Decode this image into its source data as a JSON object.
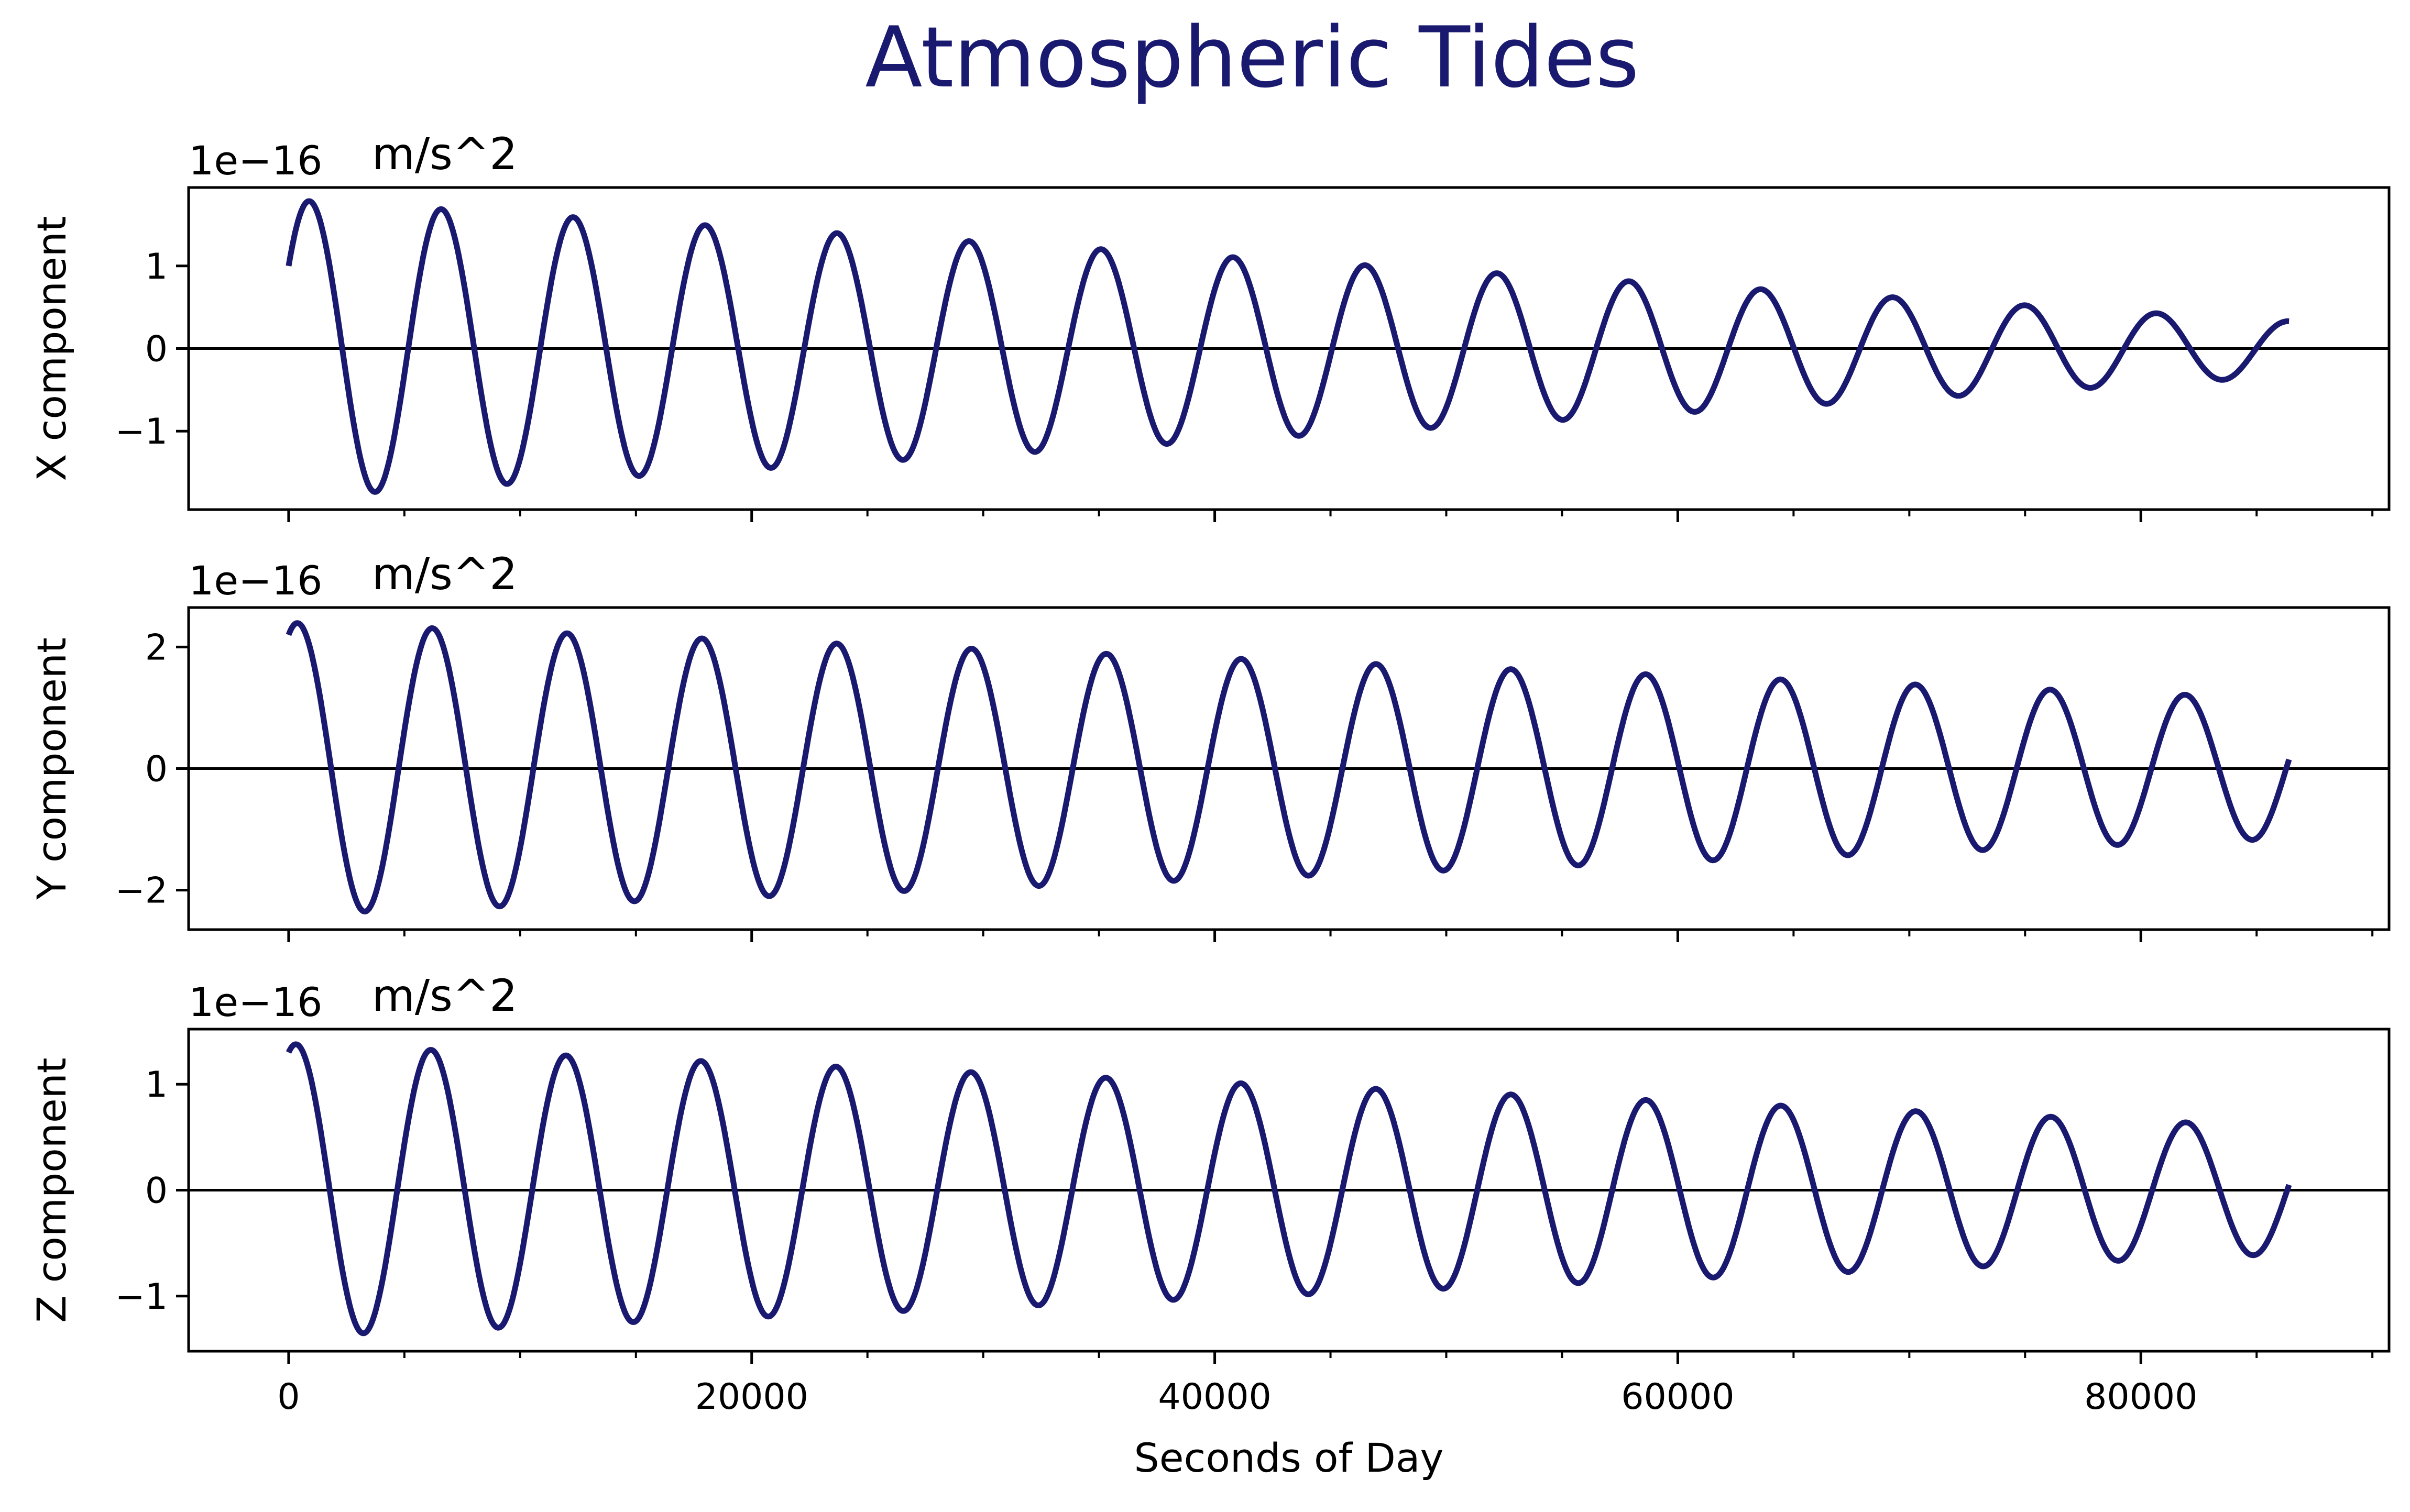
{
  "figure": {
    "title": "Atmospheric Tides",
    "xlabel": "Seconds of Day",
    "colors": {
      "line": "#191970",
      "title": "#191970",
      "axis": "#000000",
      "zero_line": "#000000"
    }
  },
  "chart_data": [
    {
      "type": "line",
      "ylabel": "X component",
      "offset_text": "1e−16",
      "units": "m/s^2",
      "xlim": [
        -4320,
        90720
      ],
      "ylim": [
        -1.95,
        1.95
      ],
      "xticks": [
        0,
        20000,
        40000,
        60000,
        80000
      ],
      "xtick_labels": [
        "",
        "",
        "",
        "",
        ""
      ],
      "yticks": [
        -1,
        0,
        1
      ],
      "ytick_labels": [
        "−1",
        "0",
        "1"
      ],
      "zero_line": true,
      "wave": {
        "x_start": 0,
        "x_end": 86400,
        "amp_start": 1.8,
        "amp_end": 0.33,
        "start_phase_value": 1.0,
        "end_value": 0.33,
        "cycles": 15
      },
      "series": [
        {
          "name": ""
        }
      ]
    },
    {
      "type": "line",
      "ylabel": "Y component",
      "offset_text": "1e−16",
      "units": "m/s^2",
      "xlim": [
        -4320,
        90720
      ],
      "ylim": [
        -2.65,
        2.65
      ],
      "xticks": [
        0,
        20000,
        40000,
        60000,
        80000
      ],
      "xtick_labels": [
        "",
        "",
        "",
        "",
        ""
      ],
      "yticks": [
        -2,
        0,
        2
      ],
      "ytick_labels": [
        "−2",
        "0",
        "2"
      ],
      "zero_line": true,
      "wave": {
        "x_start": 0,
        "x_end": 86400,
        "amp_start": 2.4,
        "amp_end": 1.15,
        "start_phase_value": 2.2,
        "end_value": 0.15,
        "cycles": 15
      },
      "series": [
        {
          "name": ""
        }
      ]
    },
    {
      "type": "line",
      "ylabel": "Z component",
      "offset_text": "1e−16",
      "units": "m/s^2",
      "xlim": [
        -4320,
        90720
      ],
      "ylim": [
        -1.52,
        1.52
      ],
      "xticks": [
        0,
        20000,
        40000,
        60000,
        80000
      ],
      "xtick_labels": [
        "0",
        "20000",
        "40000",
        "60000",
        "80000"
      ],
      "yticks": [
        -1,
        0,
        1
      ],
      "ytick_labels": [
        "−1",
        "0",
        "1"
      ],
      "zero_line": true,
      "wave": {
        "x_start": 0,
        "x_end": 86400,
        "amp_start": 1.38,
        "amp_end": 0.6,
        "start_phase_value": 1.3,
        "end_value": 0.05,
        "cycles": 15
      },
      "series": [
        {
          "name": ""
        }
      ]
    }
  ]
}
